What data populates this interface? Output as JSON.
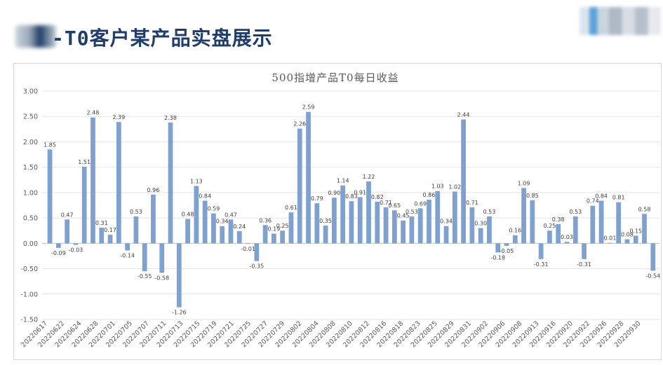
{
  "slide": {
    "title_suffix": "-T0客户某产品实盘展示",
    "logo_icon": "blurred-logo-icon"
  },
  "chart_data": {
    "type": "bar",
    "title": "500指增产品T0每日收益",
    "xlabel": "",
    "ylabel": "",
    "ylim": [
      -1.5,
      3.0
    ],
    "yticks": [
      "3.00",
      "2.50",
      "2.00",
      "1.50",
      "1.00",
      "0.50",
      "0.00",
      "-0.50",
      "-1.00",
      "-1.50"
    ],
    "grid": true,
    "bar_color": "#7ea1d0",
    "xticklabels": [
      "20220617",
      "20220622",
      "20220624",
      "20220628",
      "20220701",
      "20220705",
      "20220707",
      "20220711",
      "20220713",
      "20220715",
      "20220719",
      "20220721",
      "20220725",
      "20220727",
      "20220729",
      "20220802",
      "20220804",
      "20220808",
      "20220810",
      "20220812",
      "20220816",
      "20220818",
      "20220823",
      "20220825",
      "20220829",
      "20220831",
      "20220902",
      "20220906",
      "20220908",
      "20220913",
      "20220916",
      "20220920",
      "20220922",
      "20220926",
      "20220928",
      "20220930"
    ],
    "values": [
      1.85,
      -0.09,
      0.47,
      -0.03,
      1.51,
      2.48,
      0.31,
      0.17,
      2.39,
      -0.14,
      0.53,
      -0.55,
      0.96,
      -0.58,
      2.38,
      -1.26,
      0.48,
      1.13,
      0.84,
      0.59,
      0.34,
      0.47,
      0.24,
      -0.01,
      -0.35,
      0.36,
      0.19,
      0.25,
      0.61,
      2.26,
      2.59,
      0.79,
      0.35,
      0.9,
      1.14,
      0.83,
      0.91,
      1.22,
      0.82,
      0.71,
      0.65,
      0.45,
      0.53,
      0.69,
      0.86,
      1.03,
      0.34,
      1.02,
      2.44,
      0.71,
      0.3,
      0.53,
      -0.18,
      -0.05,
      0.16,
      1.09,
      0.85,
      -0.31,
      0.25,
      0.38,
      0.03,
      0.53,
      -0.31,
      0.74,
      0.84,
      0.01,
      0.81,
      0.08,
      0.15,
      0.58,
      -0.54
    ],
    "labels": [
      "1.85",
      "-0.09",
      "0.47",
      "-0.03",
      "1.51",
      "2.48",
      "0.31",
      "0.17",
      "2.39",
      "-0.14",
      "0.53",
      "-0.55",
      "0.96",
      "-0.58",
      "2.38",
      "-1.26",
      "0.48",
      "1.13",
      "0.84",
      "0.59",
      "0.34",
      "0.47",
      "0.24",
      "-0.01",
      "-0.35",
      "0.36",
      "0.19",
      "0.25",
      "0.61",
      "2.26",
      "2.59",
      "0.79",
      "0.35",
      "0.90",
      "1.14",
      "0.83",
      "0.91",
      "1.22",
      "0.82",
      "0.71",
      "0.65",
      "0.45",
      "0.53",
      "0.69",
      "0.86",
      "1.03",
      "0.34",
      "1.02",
      "2.44",
      "0.71",
      "0.30",
      "0.53",
      "-0.18",
      "-0.05",
      "0.16",
      "1.09",
      "0.85",
      "-0.31",
      "0.25",
      "0.38",
      "0.03",
      "0.53",
      "-0.31",
      "0.74",
      "0.84",
      "0.01",
      "0.81",
      "0.08",
      "0.15",
      "0.58",
      "-0.54"
    ]
  }
}
